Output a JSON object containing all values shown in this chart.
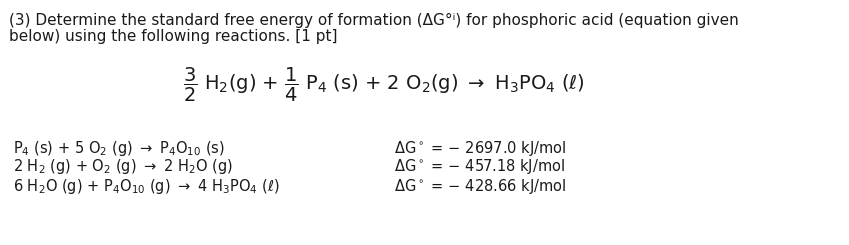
{
  "background_color": "#ffffff",
  "text_color": "#1a1a1a",
  "header_line1": "(3) Determine the standard free energy of formation (ΔG°ⁱ) for phosphoric acid (equation given",
  "header_line2": "below) using the following reactions. [1 pt]",
  "rxn_texts": [
    "P$_4$ (s) + 5 O$_2$ (g) $\\rightarrow$ P$_4$O$_{10}$ (s)",
    "2 H$_2$ (g) + O$_2$ (g) $\\rightarrow$ 2 H$_2$O (g)",
    "6 H$_2$O (g) + P$_4$O$_{10}$ (g) $\\rightarrow$ 4 H$_3$PO$_4$ ($\\ell$)"
  ],
  "dg_texts": [
    "$\\Delta$G$^\\circ$ = − 2697.0 kJ/mol",
    "$\\Delta$G$^\\circ$ = − 457.18 kJ/mol",
    "$\\Delta$G$^\\circ$ = − 428.66 kJ/mol"
  ],
  "figsize": [
    8.49,
    2.45
  ],
  "dpi": 100
}
